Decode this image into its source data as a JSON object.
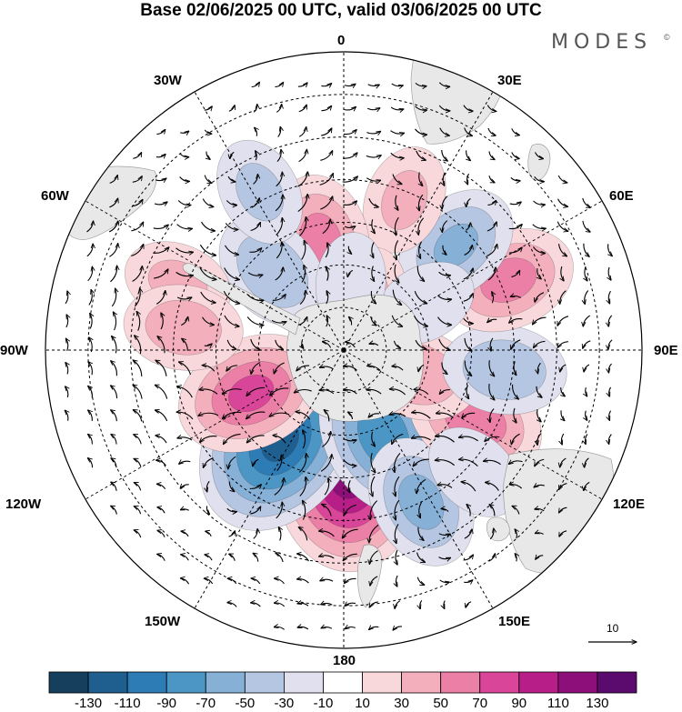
{
  "title": "Base 02/06/2025 00 UTC, valid 03/06/2025 00 UTC",
  "brand": {
    "name": "MODES",
    "mark": "©"
  },
  "longitude_labels": {
    "lon_0": "0",
    "lon_30e": "30E",
    "lon_60e": "60E",
    "lon_90e": "90E",
    "lon_120e": "120E",
    "lon_150e": "150E",
    "lon_180": "180",
    "lon_150w": "150W",
    "lon_120w": "120W",
    "lon_90w": "90W",
    "lon_60w": "60W",
    "lon_30w": "30W"
  },
  "reference_vector": {
    "label": "10",
    "value": 10
  },
  "colorbar": {
    "labels": [
      "-130",
      "-110",
      "-90",
      "-70",
      "-50",
      "-30",
      "-10",
      "10",
      "30",
      "50",
      "70",
      "90",
      "110",
      "130"
    ],
    "colors": [
      "#163f5e",
      "#1e5f90",
      "#2d7cb6",
      "#4c96c6",
      "#86b0d6",
      "#b5c6e2",
      "#e0e0ee",
      "#ffffff",
      "#f9d8dc",
      "#f3afbc",
      "#ec7fa6",
      "#d94598",
      "#b81e88",
      "#8c0f7a",
      "#5b0b6e"
    ]
  },
  "colors": {
    "land": "#e8e8e8",
    "vector": "#000000"
  },
  "anomaly_centers": [
    {
      "lon": 178,
      "colat": 28,
      "value": 125
    },
    {
      "lon": -145,
      "colat": 26,
      "value": -115
    },
    {
      "lon": 155,
      "colat": 22,
      "value": -85
    },
    {
      "lon": -115,
      "colat": 24,
      "value": 72
    },
    {
      "lon": 153,
      "colat": 40,
      "value": -55
    },
    {
      "lon": 118,
      "colat": 35,
      "value": 60
    },
    {
      "lon": 108,
      "colat": 18,
      "value": 45
    },
    {
      "lon": 97,
      "colat": 38,
      "value": -45
    },
    {
      "lon": 67,
      "colat": 42,
      "value": 55
    },
    {
      "lon": 47,
      "colat": 36,
      "value": -50
    },
    {
      "lon": 22,
      "colat": 38,
      "value": 30
    },
    {
      "lon": 22,
      "colat": 12,
      "value": 35
    },
    {
      "lon": -12,
      "colat": 26,
      "value": 55
    },
    {
      "lon": -42,
      "colat": 25,
      "value": -45
    },
    {
      "lon": -68,
      "colat": 42,
      "value": 30
    },
    {
      "lon": -82,
      "colat": 38,
      "value": 40
    },
    {
      "lon": 60,
      "colat": 22,
      "value": -25
    },
    {
      "lon": 6,
      "colat": 16,
      "value": -20
    },
    {
      "lon": -28,
      "colat": 42,
      "value": -30
    },
    {
      "lon": 133,
      "colat": 42,
      "value": -25
    }
  ]
}
